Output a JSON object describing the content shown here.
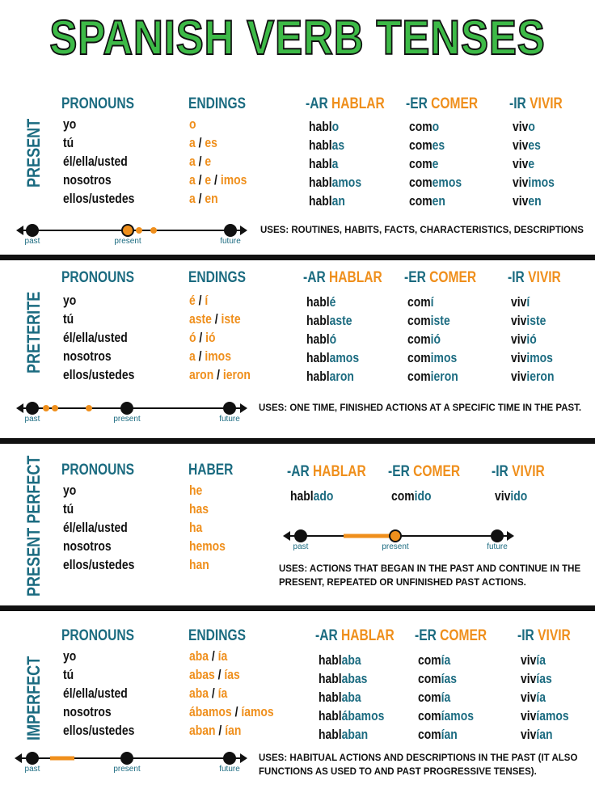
{
  "title": "SPANISH VERB TENSES",
  "separator": "/",
  "sections": [
    {
      "name": "PRESENT",
      "pronouns_header": "PRONOUNS",
      "pronouns": [
        "yo",
        "tú",
        "él/ella/usted",
        "nosotros",
        "ellos/ustedes"
      ],
      "endings_header": "ENDINGS",
      "endings": [
        [
          "o"
        ],
        [
          "a",
          "es"
        ],
        [
          "a",
          "e"
        ],
        [
          "a",
          "e",
          "imos"
        ],
        [
          "a",
          "en"
        ]
      ],
      "verbs": [
        {
          "prefix": "-AR",
          "verb": "HABLAR",
          "forms": [
            [
              "habl",
              "o"
            ],
            [
              "habl",
              "as"
            ],
            [
              "habl",
              "a"
            ],
            [
              "habl",
              "amos"
            ],
            [
              "habl",
              "an"
            ]
          ]
        },
        {
          "prefix": "-ER",
          "verb": "COMER",
          "forms": [
            [
              "com",
              "o"
            ],
            [
              "com",
              "es"
            ],
            [
              "com",
              "e"
            ],
            [
              "com",
              "emos"
            ],
            [
              "com",
              "en"
            ]
          ]
        },
        {
          "prefix": "-IR",
          "verb": "VIVIR",
          "forms": [
            [
              "viv",
              "o"
            ],
            [
              "viv",
              "es"
            ],
            [
              "viv",
              "e"
            ],
            [
              "viv",
              "imos"
            ],
            [
              "viv",
              "en"
            ]
          ]
        }
      ],
      "timeline": [
        "past",
        "present",
        "future"
      ],
      "uses": "USES: ROUTINES, HABITS, FACTS, CHARACTERISTICS, DESCRIPTIONS"
    },
    {
      "name": "PRETERITE",
      "pronouns_header": "PRONOUNS",
      "pronouns": [
        "yo",
        "tú",
        "él/ella/usted",
        "nosotros",
        "ellos/ustedes"
      ],
      "endings_header": "ENDINGS",
      "endings": [
        [
          "é",
          "í"
        ],
        [
          "aste",
          "iste"
        ],
        [
          "ó",
          "ió"
        ],
        [
          "a",
          "imos"
        ],
        [
          "aron",
          "ieron"
        ]
      ],
      "verbs": [
        {
          "prefix": "-AR",
          "verb": "HABLAR",
          "forms": [
            [
              "habl",
              "é"
            ],
            [
              "habl",
              "aste"
            ],
            [
              "habl",
              "ó"
            ],
            [
              "habl",
              "amos"
            ],
            [
              "habl",
              "aron"
            ]
          ]
        },
        {
          "prefix": "-ER",
          "verb": "COMER",
          "forms": [
            [
              "com",
              "í"
            ],
            [
              "com",
              "iste"
            ],
            [
              "com",
              "ió"
            ],
            [
              "com",
              "imos"
            ],
            [
              "com",
              "ieron"
            ]
          ]
        },
        {
          "prefix": "-IR",
          "verb": "VIVIR",
          "forms": [
            [
              "viv",
              "í"
            ],
            [
              "viv",
              "iste"
            ],
            [
              "viv",
              "ió"
            ],
            [
              "viv",
              "imos"
            ],
            [
              "viv",
              "ieron"
            ]
          ]
        }
      ],
      "timeline": [
        "past",
        "present",
        "future"
      ],
      "uses": "USES: ONE TIME, FINISHED ACTIONS AT A SPECIFIC TIME IN THE PAST."
    },
    {
      "name": "PRESENT PERFECT",
      "pronouns_header": "PRONOUNS",
      "pronouns": [
        "yo",
        "tú",
        "él/ella/usted",
        "nosotros",
        "ellos/ustedes"
      ],
      "endings_header": "HABER",
      "endings": [
        [
          "he"
        ],
        [
          "has"
        ],
        [
          "ha"
        ],
        [
          "hemos"
        ],
        [
          "han"
        ]
      ],
      "verbs": [
        {
          "prefix": "-AR",
          "verb": "HABLAR",
          "forms": [
            [
              "habl",
              "ado"
            ]
          ]
        },
        {
          "prefix": "-ER",
          "verb": "COMER",
          "forms": [
            [
              "com",
              "ido"
            ]
          ]
        },
        {
          "prefix": "-IR",
          "verb": "VIVIR",
          "forms": [
            [
              "viv",
              "ido"
            ]
          ]
        }
      ],
      "timeline": [
        "past",
        "present",
        "future"
      ],
      "uses": "USES: ACTIONS THAT BEGAN IN THE PAST AND CONTINUE IN THE PRESENT, REPEATED OR UNFINISHED PAST ACTIONS."
    },
    {
      "name": "IMPERFECT",
      "pronouns_header": "PRONOUNS",
      "pronouns": [
        "yo",
        "tú",
        "él/ella/usted",
        "nosotros",
        "ellos/ustedes"
      ],
      "endings_header": "ENDINGS",
      "endings": [
        [
          "aba",
          "ía"
        ],
        [
          "abas",
          "ías"
        ],
        [
          "aba",
          "ía"
        ],
        [
          "ábamos",
          "íamos"
        ],
        [
          "aban",
          "ían"
        ]
      ],
      "verbs": [
        {
          "prefix": "-AR",
          "verb": "HABLAR",
          "forms": [
            [
              "habl",
              "aba"
            ],
            [
              "habl",
              "abas"
            ],
            [
              "habl",
              "aba"
            ],
            [
              "habl",
              "ábamos"
            ],
            [
              "habl",
              "aban"
            ]
          ]
        },
        {
          "prefix": "-ER",
          "verb": "COMER",
          "forms": [
            [
              "com",
              "ía"
            ],
            [
              "com",
              "ías"
            ],
            [
              "com",
              "ía"
            ],
            [
              "com",
              "íamos"
            ],
            [
              "com",
              "ían"
            ]
          ]
        },
        {
          "prefix": "-IR",
          "verb": "VIVIR",
          "forms": [
            [
              "viv",
              "ía"
            ],
            [
              "viv",
              "ías"
            ],
            [
              "viv",
              "ía"
            ],
            [
              "viv",
              "íamos"
            ],
            [
              "viv",
              "ían"
            ]
          ]
        }
      ],
      "timeline": [
        "past",
        "present",
        "future"
      ],
      "uses": "USES: HABITUAL ACTIONS AND DESCRIPTIONS IN THE PAST (IT ALSO FUNCTIONS AS USED TO AND PAST PROGRESSIVE TENSES)."
    }
  ]
}
